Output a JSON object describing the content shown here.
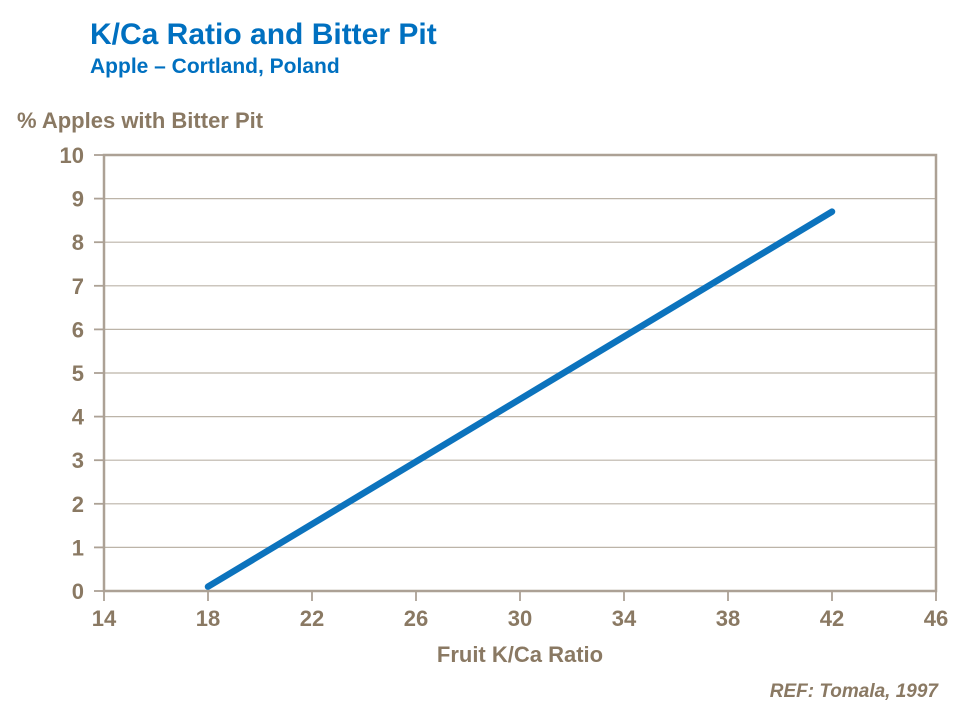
{
  "header": {
    "title": "K/Ca Ratio and Bitter Pit",
    "subtitle": "Apple – Cortland, Poland"
  },
  "footer": {
    "reference": "REF: Tomala, 1997"
  },
  "colors": {
    "title_blue": "#0070C0",
    "line_blue": "#0C73BD",
    "text_brown": "#8A7963",
    "axis_line": "#ACA195",
    "gridline": "#BCB4A8"
  },
  "chart_data": {
    "type": "line",
    "title": "K/Ca Ratio and Bitter Pit",
    "subtitle": "Apple – Cortland, Poland",
    "xlabel": "Fruit K/Ca Ratio",
    "ylabel": "% Apples with Bitter Pit",
    "xlim": [
      14,
      46
    ],
    "ylim": [
      0,
      10
    ],
    "x_ticks": [
      14,
      18,
      22,
      26,
      30,
      34,
      38,
      42,
      46
    ],
    "y_ticks": [
      0,
      1,
      2,
      3,
      4,
      5,
      6,
      7,
      8,
      9,
      10
    ],
    "grid": "horizontal",
    "legend": "none",
    "x": [
      18,
      42
    ],
    "series": [
      {
        "name": "% apples with bitter pit",
        "values": [
          0.1,
          8.7
        ]
      }
    ],
    "annotation": "REF: Tomala, 1997"
  }
}
